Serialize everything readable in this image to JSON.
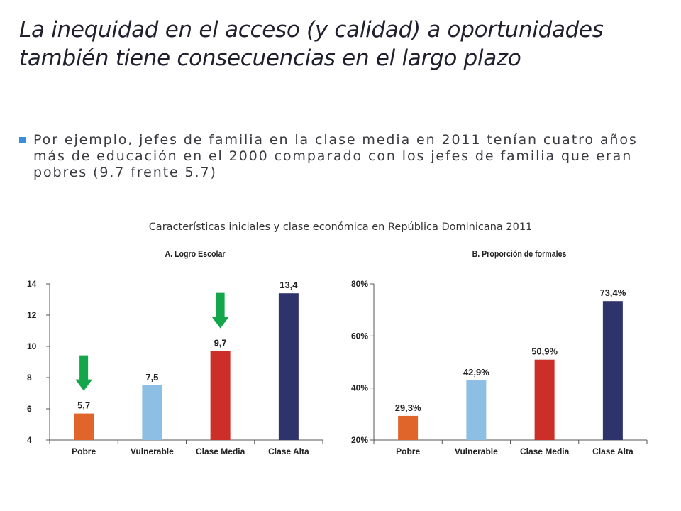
{
  "slide": {
    "title": "La inequidad en el acceso (y calidad) a oportunidades también tiene consecuencias en el largo plazo",
    "bullet": "Por ejemplo, jefes de familia en la clase media en 2011 tenían cuatro años más de educación en el 2000 comparado con los jefes de familia que eran pobres (9.7 frente 5.7)",
    "figure_subtitle": "Características iniciales y clase económica en República Dominicana 2011"
  },
  "colors": {
    "pobre": "#e0652a",
    "vulnerable": "#8cbfe3",
    "clase_media": "#cc2f27",
    "clase_alta": "#2e346b",
    "arrow": "#14a64a",
    "bullet": "#3b8fd8"
  },
  "chart_data": [
    {
      "type": "bar",
      "title": "A. Logro Escolar",
      "categories": [
        "Pobre",
        "Vulnerable",
        "Clase Media",
        "Clase Alta"
      ],
      "values": [
        5.7,
        7.5,
        9.7,
        13.4
      ],
      "value_labels": [
        "5,7",
        "7,5",
        "9,7",
        "13,4"
      ],
      "ylim": [
        4,
        14
      ],
      "yticks": [
        4,
        6,
        8,
        10,
        12,
        14
      ],
      "ytick_labels": [
        "4",
        "6",
        "8",
        "10",
        "12",
        "14"
      ],
      "annotations": [
        "down arrow over Pobre",
        "down arrow over Clase Media"
      ],
      "grid": false,
      "xlabel": "",
      "ylabel": ""
    },
    {
      "type": "bar",
      "title": "B. Proporción de formales",
      "categories": [
        "Pobre",
        "Vulnerable",
        "Clase Media",
        "Clase Alta"
      ],
      "values": [
        29.3,
        42.9,
        50.9,
        73.4
      ],
      "value_labels": [
        "29,3%",
        "42,9%",
        "50,9%",
        "73,4%"
      ],
      "ylim": [
        20,
        80
      ],
      "yticks": [
        20,
        40,
        60,
        80
      ],
      "ytick_labels": [
        "20%",
        "40%",
        "60%",
        "80%"
      ],
      "grid": false,
      "xlabel": "",
      "ylabel": ""
    }
  ]
}
